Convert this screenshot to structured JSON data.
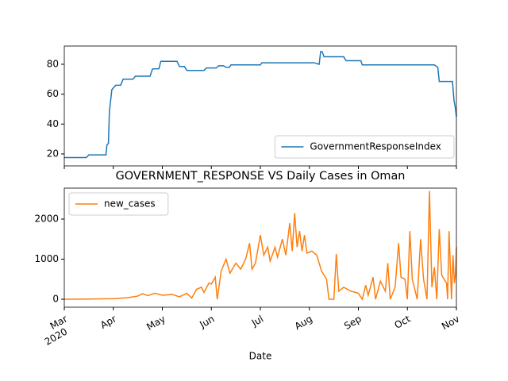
{
  "chart_data": [
    {
      "type": "line",
      "xlim": [
        3,
        11
      ],
      "xticks": [
        3,
        4,
        5,
        6,
        7,
        8,
        9,
        10,
        11
      ],
      "ylim": [
        12,
        92.2
      ],
      "yticks": [
        20,
        40,
        60,
        80
      ],
      "legend": "lower right",
      "x": [
        3.0,
        3.45,
        3.5,
        3.85,
        3.87,
        3.9,
        3.92,
        3.97,
        4.05,
        4.15,
        4.2,
        4.4,
        4.45,
        4.75,
        4.8,
        4.93,
        4.97,
        5.3,
        5.35,
        5.45,
        5.5,
        5.85,
        5.9,
        6.1,
        6.15,
        6.25,
        6.3,
        6.37,
        6.4,
        7.0,
        7.03,
        8.1,
        8.2,
        8.23,
        8.26,
        8.3,
        8.7,
        8.75,
        9.05,
        9.08,
        10.55,
        10.62,
        10.65,
        10.92,
        10.95,
        10.98,
        11.0
      ],
      "series": [
        {
          "name": "GovernmentResponseIndex",
          "color": "#1f77b4",
          "values": [
            17.6,
            17.6,
            19.4,
            19.4,
            26,
            27,
            48,
            63,
            66,
            66,
            70,
            70,
            72,
            72,
            76.9,
            77,
            82,
            82,
            78.5,
            78.5,
            75.9,
            75.9,
            77.5,
            77.5,
            79,
            79,
            78,
            78,
            79.6,
            79.6,
            81,
            81,
            80,
            88.5,
            88.5,
            85,
            85,
            82.4,
            82.4,
            79.6,
            79.6,
            78,
            68.5,
            68.5,
            56,
            50.5,
            45
          ]
        }
      ]
    },
    {
      "type": "line",
      "title": "GOVERNMENT_RESPONSE VS Daily Cases in Oman",
      "xlabel": "Date",
      "xlim": [
        3,
        11
      ],
      "xticks": [
        {
          "value": 3,
          "label": "Mar",
          "sublabel": "2020"
        },
        {
          "value": 4,
          "label": "Apr"
        },
        {
          "value": 5,
          "label": "May"
        },
        {
          "value": 6,
          "label": "Jun"
        },
        {
          "value": 7,
          "label": "Jul"
        },
        {
          "value": 8,
          "label": "Aug"
        },
        {
          "value": 9,
          "label": "Sep"
        },
        {
          "value": 10,
          "label": "Oct"
        },
        {
          "value": 11,
          "label": "Nov"
        }
      ],
      "ylim": [
        -198,
        2772
      ],
      "yticks": [
        0,
        1000,
        2000
      ],
      "legend": "upper left",
      "x": [
        3.0,
        3.5,
        4.0,
        4.3,
        4.5,
        4.6,
        4.7,
        4.85,
        5.0,
        5.2,
        5.35,
        5.5,
        5.6,
        5.7,
        5.8,
        5.85,
        5.95,
        6.0,
        6.08,
        6.12,
        6.2,
        6.3,
        6.38,
        6.5,
        6.6,
        6.7,
        6.78,
        6.83,
        6.9,
        7.0,
        7.07,
        7.15,
        7.2,
        7.3,
        7.35,
        7.45,
        7.52,
        7.6,
        7.65,
        7.7,
        7.75,
        7.8,
        7.85,
        7.9,
        7.95,
        8.05,
        8.15,
        8.25,
        8.35,
        8.4,
        8.5,
        8.55,
        8.6,
        8.7,
        8.85,
        9.0,
        9.08,
        9.15,
        9.2,
        9.3,
        9.35,
        9.45,
        9.55,
        9.6,
        9.65,
        9.75,
        9.82,
        9.87,
        9.95,
        10.0,
        10.05,
        10.1,
        10.2,
        10.27,
        10.33,
        10.4,
        10.45,
        10.5,
        10.55,
        10.6,
        10.65,
        10.7,
        10.8,
        10.82,
        10.85,
        10.9,
        10.93,
        10.96,
        10.98,
        11.0
      ],
      "series": [
        {
          "name": "new_cases",
          "color": "#ff7f0e",
          "values": [
            0,
            5,
            15,
            40,
            80,
            140,
            90,
            150,
            100,
            120,
            60,
            150,
            30,
            250,
            300,
            170,
            400,
            380,
            550,
            0,
            700,
            1000,
            650,
            900,
            750,
            1000,
            1400,
            750,
            900,
            1600,
            1100,
            1300,
            950,
            1300,
            1050,
            1500,
            1100,
            1900,
            1200,
            2150,
            1300,
            1700,
            1200,
            1600,
            1150,
            1200,
            1100,
            700,
            500,
            0,
            0,
            1130,
            200,
            300,
            200,
            150,
            0,
            350,
            100,
            550,
            0,
            450,
            200,
            900,
            0,
            300,
            1400,
            550,
            500,
            0,
            1700,
            500,
            0,
            1500,
            500,
            0,
            2700,
            300,
            800,
            0,
            1750,
            600,
            400,
            0,
            1700,
            0,
            1100,
            400,
            600,
            1300
          ]
        }
      ]
    }
  ]
}
